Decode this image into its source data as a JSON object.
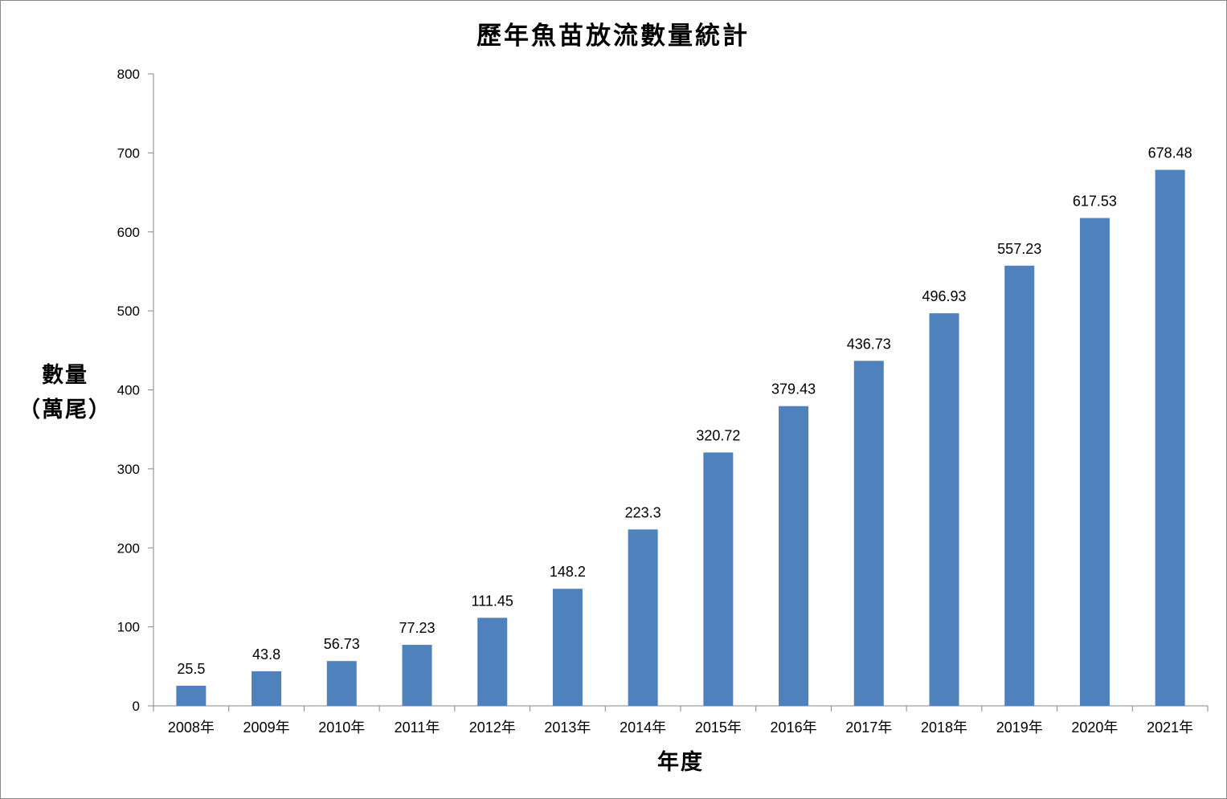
{
  "chart_data": {
    "type": "bar",
    "title": "歷年魚苗放流數量統計",
    "xlabel": "年度",
    "ylabel_lines": [
      "數量",
      "（萬尾）"
    ],
    "categories": [
      "2008年",
      "2009年",
      "2010年",
      "2011年",
      "2012年",
      "2013年",
      "2014年",
      "2015年",
      "2016年",
      "2017年",
      "2018年",
      "2019年",
      "2020年",
      "2021年"
    ],
    "values": [
      25.5,
      43.8,
      56.73,
      77.23,
      111.45,
      148.2,
      223.3,
      320.72,
      379.43,
      436.73,
      496.93,
      557.23,
      617.53,
      678.48
    ],
    "data_labels": [
      "25.5",
      "43.8",
      "56.73",
      "77.23",
      "111.45",
      "148.2",
      "223.3",
      "320.72",
      "379.43",
      "436.73",
      "496.93",
      "557.23",
      "617.53",
      "678.48"
    ],
    "ylim": [
      0,
      800
    ],
    "yticks": [
      0,
      100,
      200,
      300,
      400,
      500,
      600,
      700,
      800
    ],
    "grid": false,
    "legend": "none",
    "bar_color": "#4f81bd"
  }
}
